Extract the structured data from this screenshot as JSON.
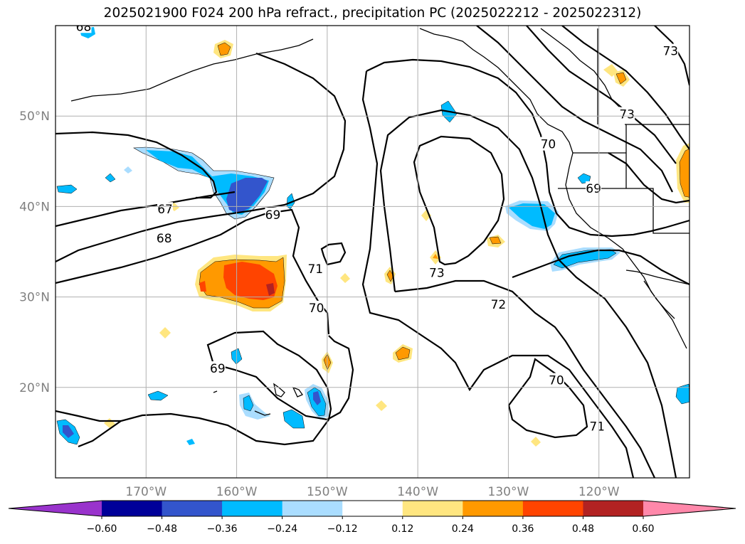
{
  "chart_data": {
    "type": "heatmap",
    "title": "2025021900 F024 200 hPa refract., precipitation PC (2025022212 - 2025022312)",
    "xlabel": "",
    "ylabel": "",
    "xlim": [
      -180,
      -110
    ],
    "ylim": [
      10,
      60
    ],
    "grid": true,
    "x_ticks": [
      -170,
      -160,
      -150,
      -140,
      -130,
      -120
    ],
    "x_tick_labels": [
      "170°W",
      "160°W",
      "150°W",
      "140°W",
      "130°W",
      "120°W"
    ],
    "y_ticks": [
      20,
      30,
      40,
      50
    ],
    "y_tick_labels": [
      "20°N",
      "30°N",
      "40°N",
      "50°N"
    ],
    "colorbar": {
      "orientation": "horizontal",
      "levels": [
        -0.6,
        -0.48,
        -0.36,
        -0.24,
        -0.12,
        0.12,
        0.24,
        0.36,
        0.48,
        0.6
      ],
      "tick_labels": [
        "−0.60",
        "−0.48",
        "−0.36",
        "−0.24",
        "−0.12",
        "0.12",
        "0.24",
        "0.36",
        "0.48",
        "0.60"
      ],
      "colors": [
        "#9933cc",
        "#000099",
        "#3355cc",
        "#00bbff",
        "#aaddff",
        "#ffffff",
        "#ffe680",
        "#ff9900",
        "#ff4400",
        "#b22222",
        "#ff88aa"
      ],
      "extend": "both"
    },
    "contour_labels": [
      {
        "text": "67",
        "x": -167.9,
        "y": 39.7
      },
      {
        "text": "68",
        "x": -168,
        "y": 36.5
      },
      {
        "text": "69",
        "x": -156,
        "y": 39.1
      },
      {
        "text": "71",
        "x": -151.3,
        "y": 33.1
      },
      {
        "text": "70",
        "x": -151.2,
        "y": 28.8
      },
      {
        "text": "73",
        "x": -137.9,
        "y": 32.7
      },
      {
        "text": "72",
        "x": -131.1,
        "y": 29.2
      },
      {
        "text": "70",
        "x": -125.6,
        "y": 46.9
      },
      {
        "text": "69",
        "x": -120.6,
        "y": 42
      },
      {
        "text": "73",
        "x": -116.9,
        "y": 50.2
      },
      {
        "text": "73",
        "x": -112.1,
        "y": 57.2
      },
      {
        "text": "69",
        "x": -162.1,
        "y": 22.1
      },
      {
        "text": "70",
        "x": -124.7,
        "y": 20.8
      },
      {
        "text": "71",
        "x": -120.2,
        "y": 15.7
      },
      {
        "text": "68",
        "x": -176.9,
        "y": 59.9
      }
    ]
  }
}
